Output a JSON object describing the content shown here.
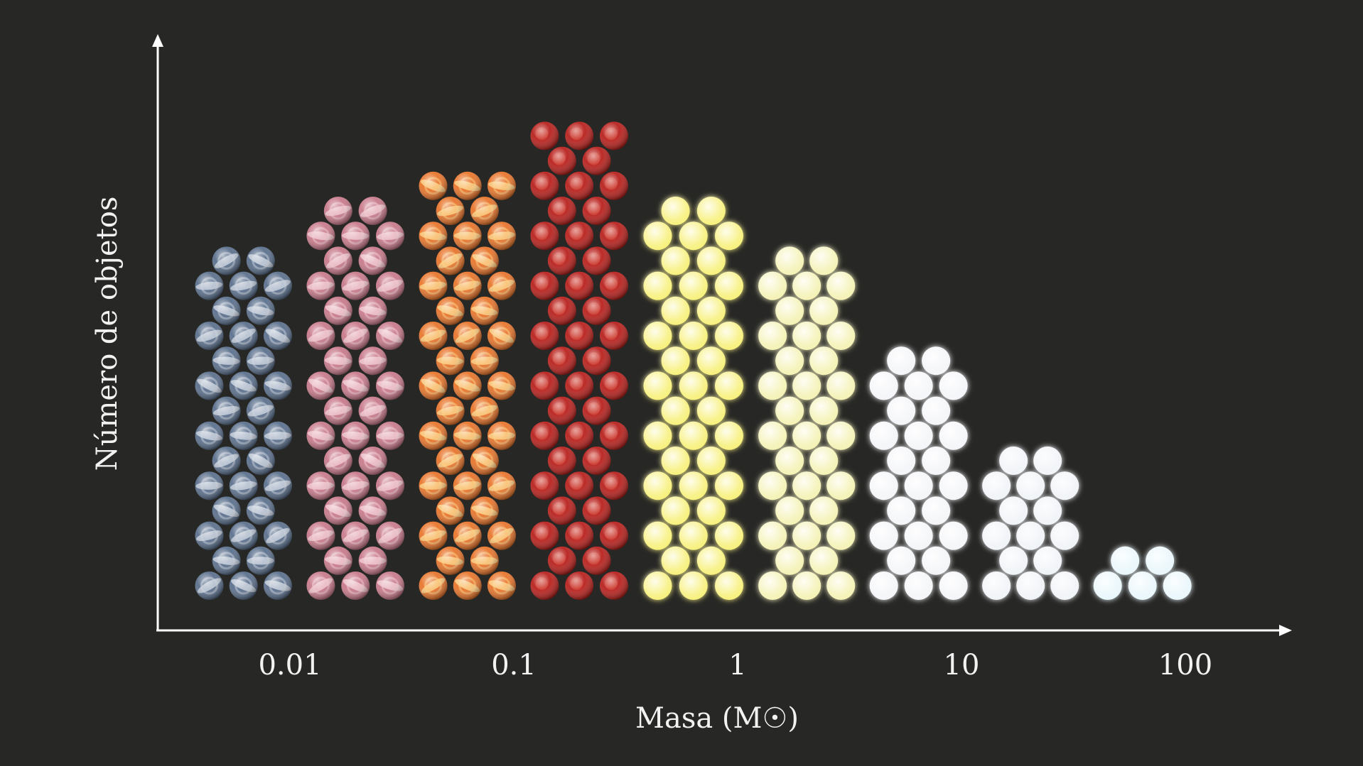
{
  "chart_data": {
    "type": "bar",
    "xlabel": "Masa (M☉)",
    "ylabel": "Número de objetos",
    "x_scale": "log",
    "x_ticks": [
      "0.01",
      "0.1",
      "1",
      "10",
      "100"
    ],
    "series": [
      {
        "name": "",
        "values": [
          {
            "x_from": 0.0035,
            "x_to": 0.011,
            "count": 11,
            "color": "#5a6f8c",
            "stripe": "#c9d1dd",
            "style": "striped"
          },
          {
            "x_from": 0.011,
            "x_to": 0.035,
            "count": 13,
            "color": "#c8798a",
            "stripe": "#f0c7cf",
            "style": "striped"
          },
          {
            "x_from": 0.035,
            "x_to": 0.11,
            "count": 14,
            "color": "#e8742a",
            "stripe": "#fbd082",
            "style": "striped"
          },
          {
            "x_from": 0.11,
            "x_to": 0.35,
            "count": 15,
            "color": "#b81f1b",
            "stripe": "#d94a3a",
            "style": "mottled"
          },
          {
            "x_from": 0.35,
            "x_to": 1.15,
            "count": 13,
            "color": "#f7f07a",
            "stripe": "#fffbc2",
            "style": "glow"
          },
          {
            "x_from": 1.15,
            "x_to": 3.6,
            "count": 11,
            "color": "#f4f2b4",
            "stripe": "#fffde8",
            "style": "glow"
          },
          {
            "x_from": 3.6,
            "x_to": 11.5,
            "count": 8.5,
            "color": "#f4f5f8",
            "stripe": "#ffffff",
            "style": "glow"
          },
          {
            "x_from": 11.5,
            "x_to": 36,
            "count": 5,
            "color": "#f0f3f7",
            "stripe": "#ffffff",
            "style": "glow"
          },
          {
            "x_from": 36,
            "x_to": 115,
            "count": 2,
            "color": "#e8f6fb",
            "stripe": "#ffffff",
            "style": "glow"
          }
        ]
      }
    ],
    "ylim": [
      0,
      16
    ],
    "grid": false,
    "legend": "none"
  }
}
